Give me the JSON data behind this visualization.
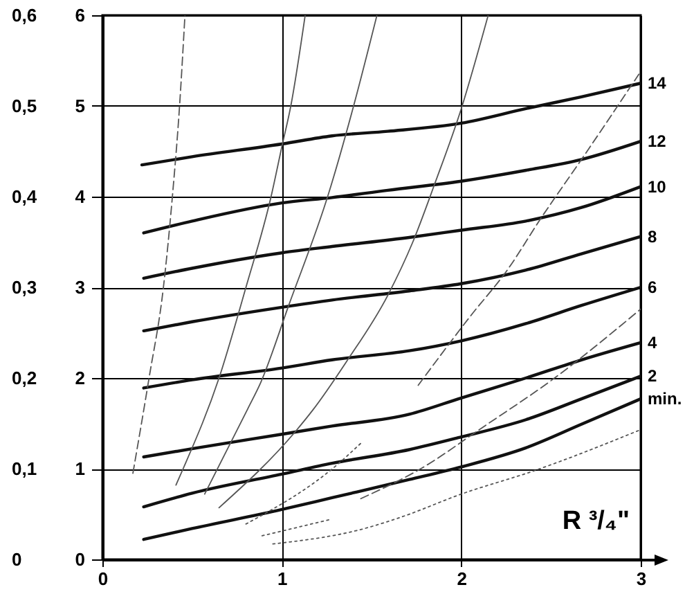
{
  "chart_data": {
    "type": "line",
    "annotations": [
      "R ³/₄\""
    ],
    "xlim": [
      0,
      3
    ],
    "xticks": [
      0,
      1,
      2,
      3
    ],
    "ylim": [
      0,
      6
    ],
    "yticks": [
      0,
      1,
      2,
      3,
      4,
      5,
      6
    ],
    "y2lim": [
      0,
      0.6
    ],
    "y2ticks": [
      0,
      {
        "value": 0.1,
        "label": "0,1"
      },
      {
        "value": 0.2,
        "label": "0,2"
      },
      {
        "value": 0.3,
        "label": "0,3"
      },
      {
        "value": 0.4,
        "label": "0,4"
      },
      {
        "value": 0.5,
        "label": "0,5"
      },
      {
        "value": 0.6,
        "label": "0,6"
      }
    ],
    "grid": true,
    "series": [
      {
        "name": "14",
        "color": "#111111",
        "line_style": "solid",
        "x": [
          0.22,
          0.5,
          1.0,
          1.28,
          1.59,
          2.0,
          2.36,
          2.67,
          3.0
        ],
        "values": [
          4.35,
          4.44,
          4.58,
          4.67,
          4.72,
          4.81,
          4.97,
          5.1,
          5.25
        ]
      },
      {
        "name": "12",
        "color": "#111111",
        "line_style": "solid",
        "x": [
          0.23,
          0.5,
          1.0,
          1.28,
          1.59,
          2.0,
          2.36,
          2.67,
          3.0
        ],
        "values": [
          3.6,
          3.73,
          3.93,
          3.99,
          4.07,
          4.17,
          4.29,
          4.41,
          4.61
        ]
      },
      {
        "name": "10",
        "color": "#111111",
        "line_style": "solid",
        "x": [
          0.23,
          0.5,
          1.0,
          1.28,
          1.71,
          2.0,
          2.36,
          2.67,
          3.0
        ],
        "values": [
          3.1,
          3.21,
          3.38,
          3.45,
          3.55,
          3.63,
          3.73,
          3.88,
          4.11
        ]
      },
      {
        "name": "8",
        "color": "#111111",
        "line_style": "solid",
        "x": [
          0.23,
          0.5,
          1.0,
          1.28,
          1.71,
          2.0,
          2.36,
          2.67,
          3.0
        ],
        "values": [
          2.52,
          2.62,
          2.78,
          2.86,
          2.96,
          3.04,
          3.19,
          3.37,
          3.56
        ]
      },
      {
        "name": "6",
        "color": "#111111",
        "line_style": "solid",
        "x": [
          0.23,
          0.5,
          1.0,
          1.28,
          1.71,
          2.0,
          2.36,
          2.67,
          3.0
        ],
        "values": [
          1.89,
          1.98,
          2.11,
          2.2,
          2.3,
          2.41,
          2.6,
          2.8,
          3.0
        ]
      },
      {
        "name": "4",
        "color": "#111111",
        "line_style": "solid",
        "x": [
          0.23,
          0.5,
          1.0,
          1.28,
          1.71,
          2.0,
          2.36,
          2.67,
          3.0
        ],
        "values": [
          1.13,
          1.22,
          1.38,
          1.47,
          1.6,
          1.78,
          2.0,
          2.2,
          2.39
        ]
      },
      {
        "name": "2",
        "color": "#111111",
        "line_style": "solid",
        "x": [
          0.23,
          0.5,
          1.0,
          1.28,
          1.71,
          2.0,
          2.36,
          2.67,
          3.0
        ],
        "values": [
          0.58,
          0.73,
          0.94,
          1.06,
          1.21,
          1.35,
          1.54,
          1.77,
          2.02
        ]
      },
      {
        "name": "min.",
        "color": "#111111",
        "line_style": "solid",
        "x": [
          0.23,
          0.5,
          1.0,
          1.28,
          1.71,
          2.0,
          2.36,
          2.67,
          3.0
        ],
        "values": [
          0.22,
          0.34,
          0.55,
          0.68,
          0.88,
          1.02,
          1.23,
          1.49,
          1.77
        ]
      },
      {
        "color": "#555555",
        "line_style": "dashed",
        "x": [
          0.17,
          0.26,
          0.34,
          0.39,
          0.43,
          0.46
        ],
        "values": [
          0.95,
          2.0,
          3.0,
          4.0,
          5.0,
          6.0
        ]
      },
      {
        "color": "#555555",
        "line_style": "solid",
        "x": [
          0.41,
          0.45,
          0.65,
          0.8,
          0.94,
          1.0,
          1.05,
          1.13
        ],
        "values": [
          0.82,
          1.0,
          2.0,
          3.0,
          4.0,
          4.55,
          5.0,
          6.0
        ]
      },
      {
        "color": "#555555",
        "line_style": "solid",
        "x": [
          0.57,
          0.81,
          0.88,
          1.04,
          1.26,
          1.4,
          1.53
        ],
        "values": [
          0.72,
          1.66,
          1.94,
          2.81,
          4.03,
          5.0,
          6.0
        ]
      },
      {
        "color": "#555555",
        "line_style": "solid",
        "x": [
          0.65,
          1.08,
          1.17,
          1.36,
          1.59,
          1.73,
          1.85,
          2.0,
          2.15
        ],
        "values": [
          0.57,
          1.42,
          1.64,
          2.18,
          2.91,
          3.5,
          4.13,
          4.97,
          6.0
        ]
      },
      {
        "color": "#555555",
        "line_style": "dashed",
        "x": [
          1.76,
          2.05,
          2.26,
          2.44,
          2.67,
          2.99
        ],
        "values": [
          1.92,
          2.68,
          3.2,
          3.75,
          4.41,
          5.35
        ]
      },
      {
        "color": "#555555",
        "line_style": "dashed",
        "x": [
          1.44,
          1.8,
          2.1,
          2.52,
          3.0
        ],
        "values": [
          0.67,
          1.03,
          1.43,
          2.0,
          2.76
        ]
      },
      {
        "color": "#555555",
        "line_style": "dotted",
        "x": [
          0.95,
          1.46,
          1.67,
          2.0,
          2.41,
          3.0
        ],
        "values": [
          0.17,
          0.34,
          0.47,
          0.72,
          0.98,
          1.43
        ]
      },
      {
        "color": "#555555",
        "line_style": "dotted",
        "x": [
          0.89,
          1.27
        ],
        "values": [
          0.26,
          0.44
        ]
      },
      {
        "color": "#555555",
        "line_style": "dotted",
        "x": [
          0.8,
          1.3,
          1.44
        ],
        "values": [
          0.39,
          1.03,
          1.28
        ]
      }
    ]
  }
}
